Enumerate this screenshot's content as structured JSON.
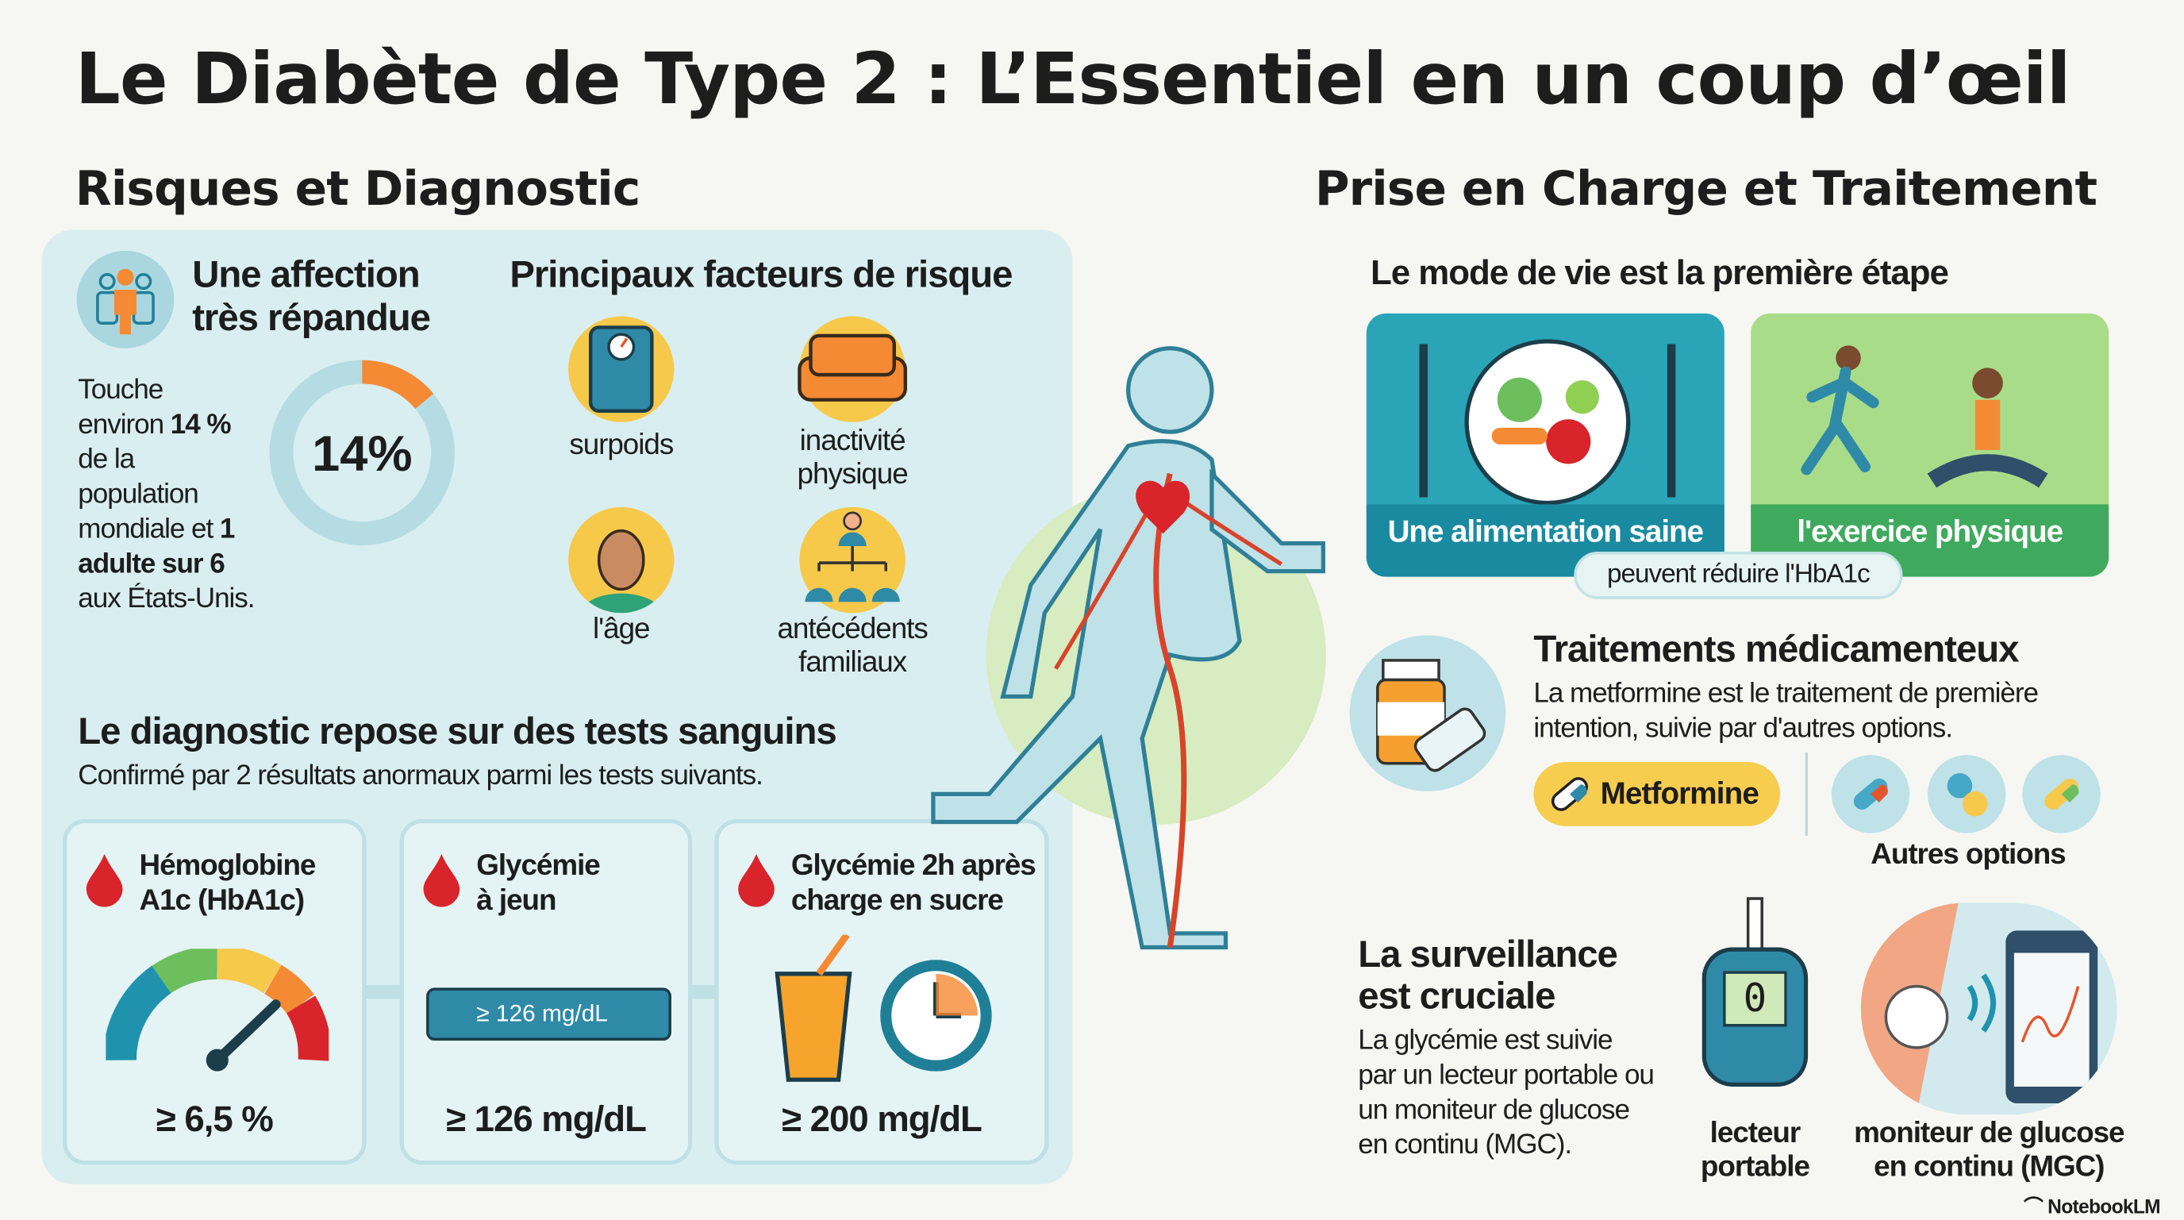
{
  "title": "Le Diabète de Type 2 : L’Essentiel en un coup d’œil",
  "left": {
    "heading": "Risques et Diagnostic",
    "prevalence": {
      "title": "Une affection très répandue",
      "text_1": "Touche",
      "text_2": "environ ",
      "text_bold_1": "14 %",
      "text_3": "de la",
      "text_4": "population",
      "text_5": "mondiale et ",
      "text_bold_2": "1",
      "text_bold_3": "adulte sur 6",
      "text_6": "aux États-Unis.",
      "donut_label": "14%",
      "donut_percent": 14,
      "icon": "people-icon"
    },
    "risk": {
      "title": "Principaux facteurs de risque",
      "factors": [
        {
          "label": "surpoids",
          "icon": "scale-icon"
        },
        {
          "label_1": "inactivité",
          "label_2": "physique",
          "icon": "couch-icon"
        },
        {
          "label": "l'âge",
          "icon": "elderly-person-icon"
        },
        {
          "label_1": "antécédents",
          "label_2": "familiaux",
          "icon": "family-tree-icon"
        }
      ]
    },
    "diagnostic": {
      "title": "Le diagnostic repose sur des tests sanguins",
      "subtitle": "Confirmé par 2 résultats anormaux parmi les tests suivants.",
      "tests": [
        {
          "name_1": "Hémoglobine",
          "name_2": "A1c (HbA1c)",
          "value": "≥ 6,5 %",
          "icon": "gauge-icon"
        },
        {
          "name_1": "Glycémie",
          "name_2": "à jeun",
          "value": "≥ 126 mg/dL",
          "strip_label": "≥ 126 mg/dL",
          "icon": "test-strip-icon"
        },
        {
          "name_1": "Glycémie 2h après",
          "name_2": "charge en sucre",
          "value": "≥ 200 mg/dL",
          "icon": "drink-clock-icon"
        }
      ]
    }
  },
  "right": {
    "heading": "Prise en Charge et Traitement",
    "lifestyle": {
      "title": "Le mode de vie est la première étape",
      "food": "Une alimentation saine",
      "exercise": "l'exercice physique",
      "note": "peuvent réduire l'HbA1c"
    },
    "meds": {
      "title": "Traitements médicamenteux",
      "text_1": "La metformine est le traitement de première",
      "text_2": "intention, suivie par d'autres options.",
      "metformin": "Metformine",
      "others": "Autres options"
    },
    "monitoring": {
      "title_1": "La surveillance",
      "title_2": "est cruciale",
      "text": [
        "La glycémie est suivie",
        "par un lecteur portable ou",
        "un moniteur de glucose",
        "en continu (MGC)."
      ],
      "meter_1": "lecteur",
      "meter_2": "portable",
      "meter_display": "0",
      "cgm_1": "moniteur de glucose",
      "cgm_2": "en continu (MGC)"
    }
  },
  "brand": "NotebookLM",
  "colors": {
    "panel": "#d9eef0",
    "orange": "#f58a34",
    "teal": "#1f93ad",
    "green": "#6cbf5c",
    "yellow": "#f7cd4f",
    "red": "#d8242a"
  }
}
